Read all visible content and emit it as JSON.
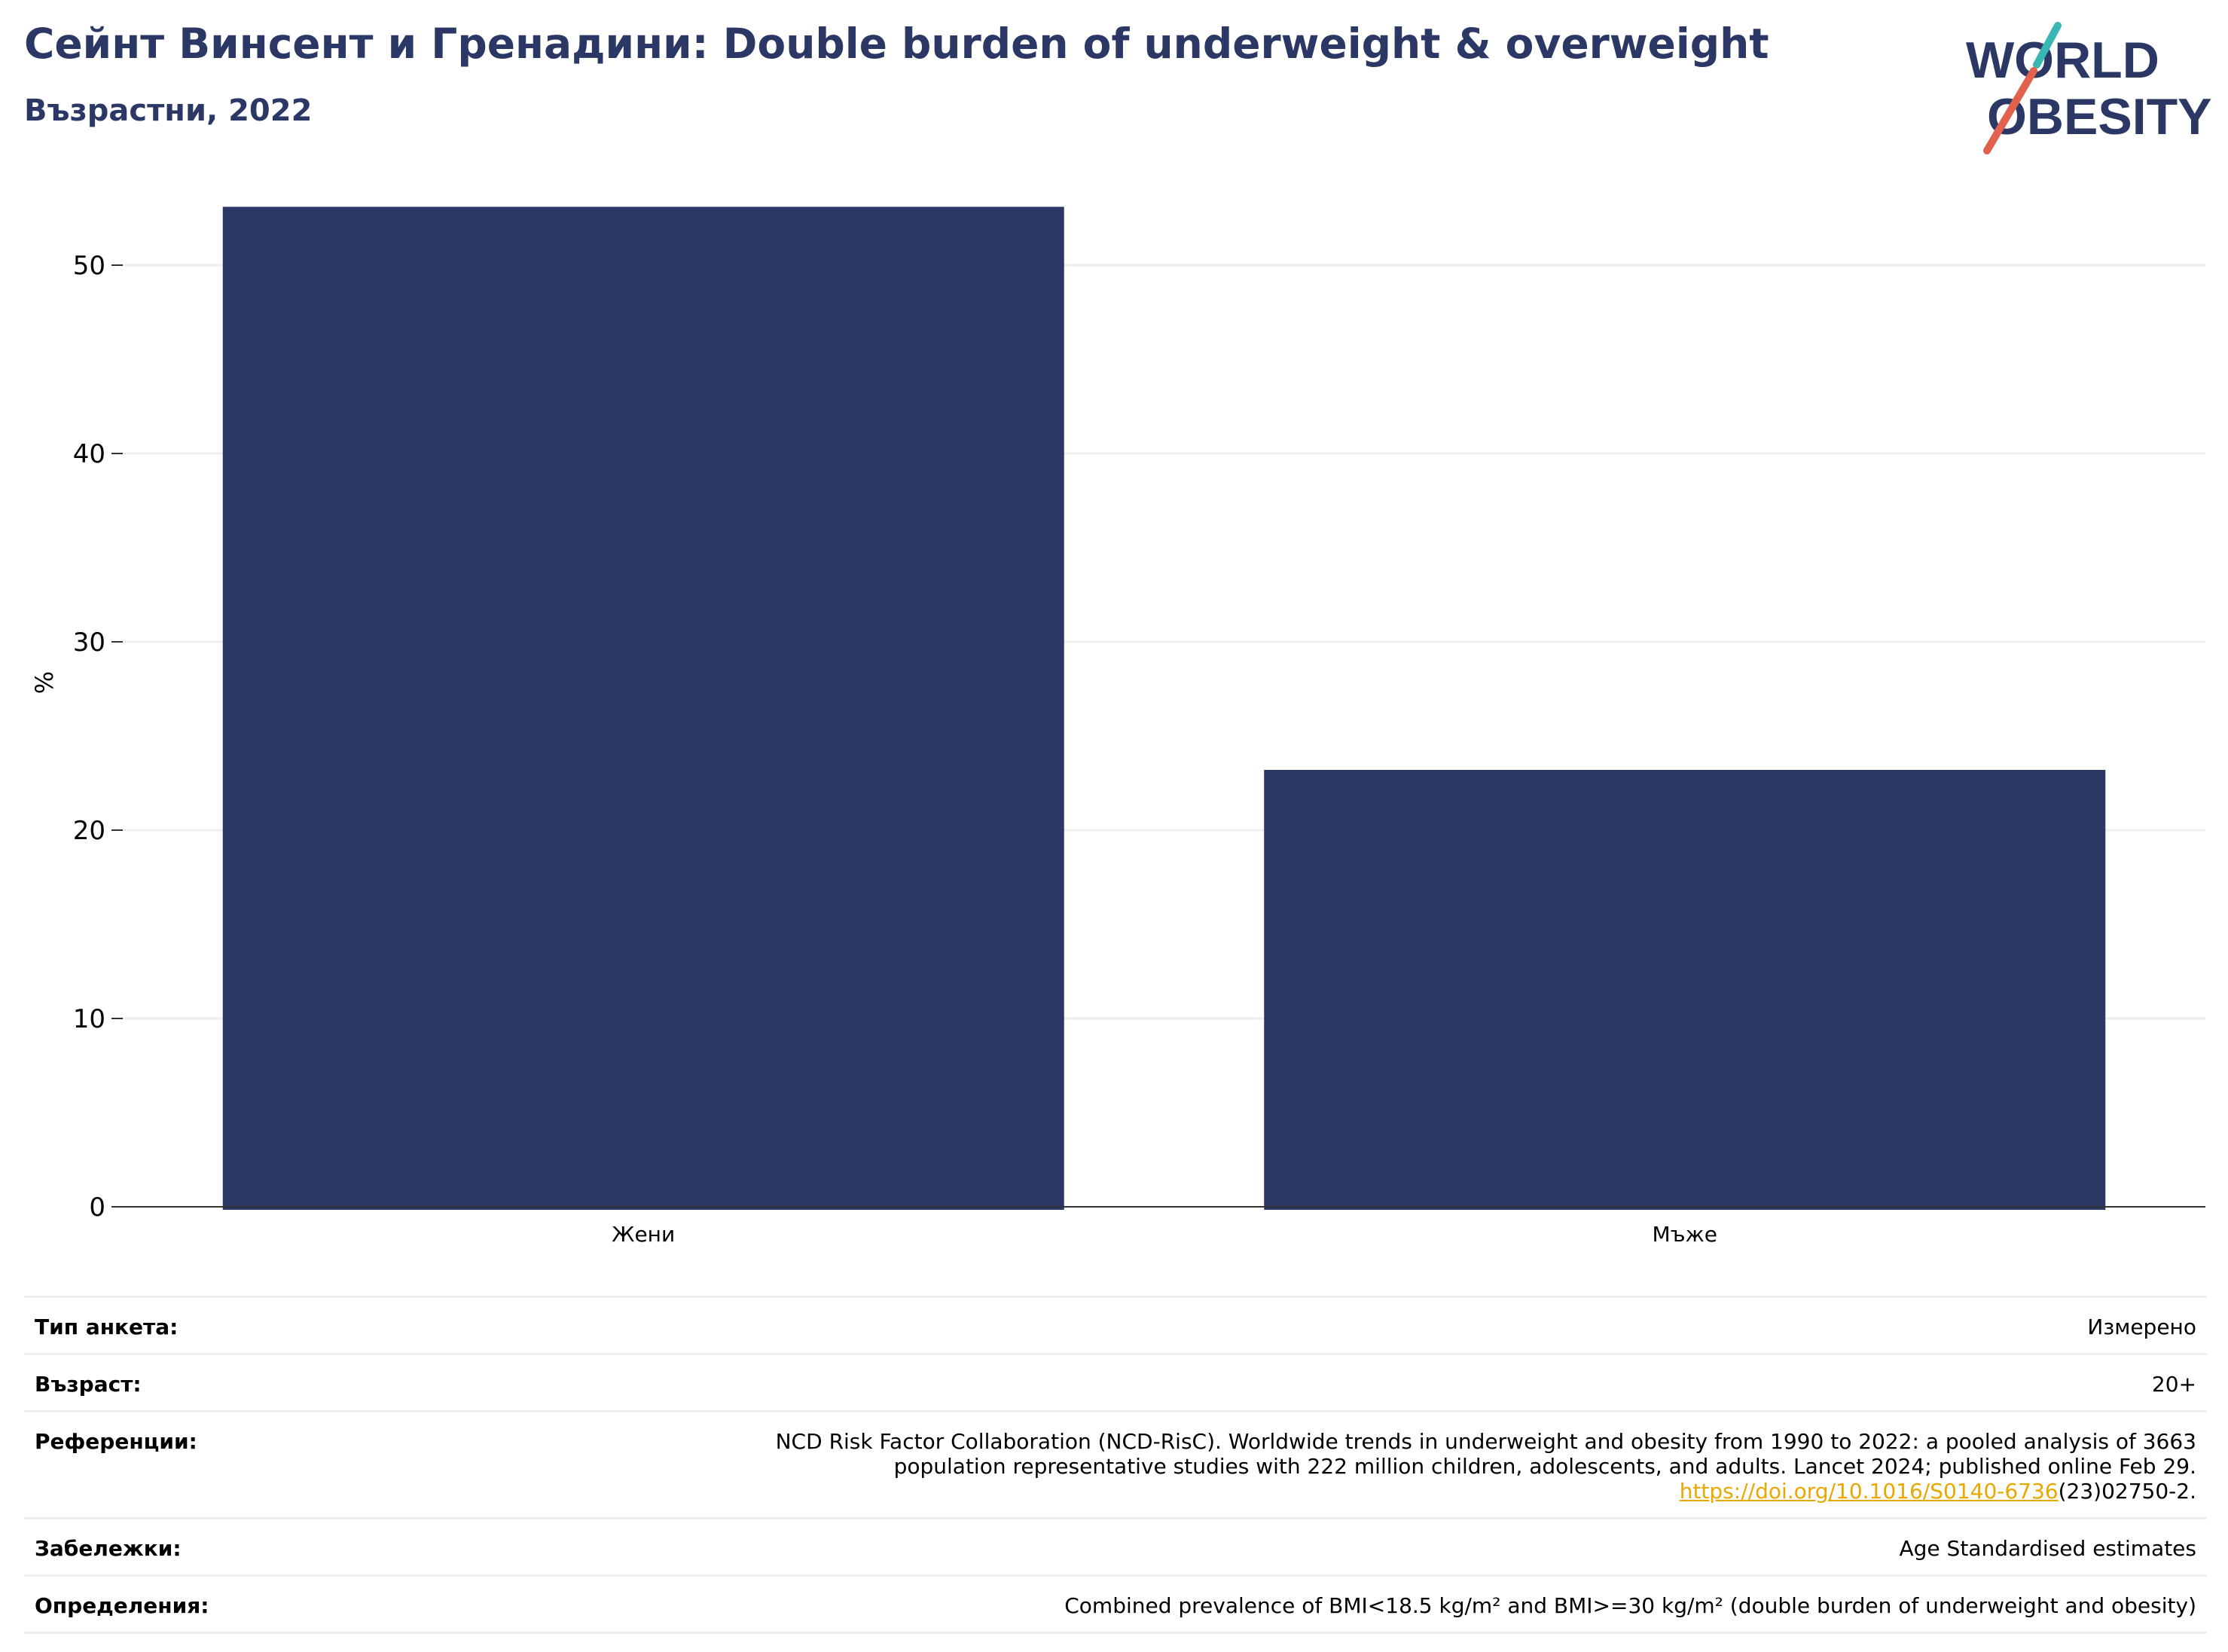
{
  "header": {
    "title": "Сейнт Винсент и Гренадини: Double burden of underweight & overweight",
    "subtitle": "Възрастни, 2022",
    "logo_text_line1": "WORLD",
    "logo_text_line2": "OBESITY"
  },
  "colors": {
    "bar": "#2b3764",
    "title": "#2b3764",
    "grid": "#eeeeee",
    "link": "#e8a800",
    "logo_teal": "#3ab7b4",
    "logo_red": "#e2614c"
  },
  "chart_data": {
    "type": "bar",
    "categories": [
      "Жени",
      "Мъже"
    ],
    "values": [
      53.1,
      23.2
    ],
    "ylabel": "%",
    "xlabel": "",
    "ylim": [
      0,
      55
    ],
    "yticks": [
      0,
      10,
      20,
      30,
      40,
      50
    ],
    "grid": true
  },
  "info": {
    "rows": [
      {
        "label": "Тип анкета:",
        "value": "Измерено"
      },
      {
        "label": "Възраст:",
        "value": "20+"
      },
      {
        "label": "Референции:",
        "value_line1": "NCD Risk Factor Collaboration (NCD-RisC). Worldwide trends in underweight and obesity from 1990 to 2022: a pooled analysis of 3663",
        "value_line2": "population representative studies with 222 million children, adolescents, and adults. Lancet 2024; published online Feb 29.",
        "link_text": "https://doi.org/10.1016/S0140-6736",
        "link_suffix": "(23)02750-2."
      },
      {
        "label": "Забележки:",
        "value": "Age Standardised estimates"
      },
      {
        "label": "Определения:",
        "value": "Combined prevalence of BMI<18.5 kg/m² and BMI>=30 kg/m² (double burden of underweight and obesity)"
      }
    ]
  }
}
